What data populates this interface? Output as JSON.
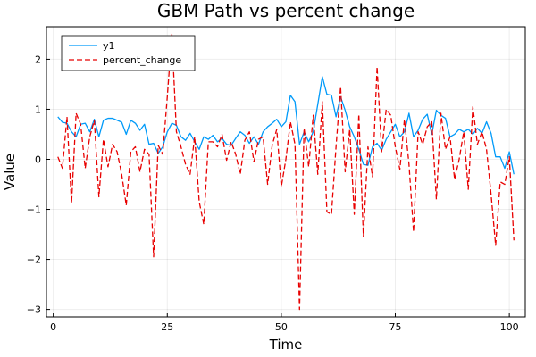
{
  "chart_data": {
    "type": "line",
    "title": "GBM Path vs percent change",
    "xlabel": "Time",
    "ylabel": "Value",
    "xlim": [
      -1.5,
      103.5
    ],
    "ylim": [
      -3.15,
      2.65
    ],
    "x_ticks": [
      0,
      25,
      50,
      75,
      100
    ],
    "y_ticks": [
      -3,
      -2,
      -1,
      0,
      1,
      2
    ],
    "grid": true,
    "legend_position": "top-left",
    "series": [
      {
        "name": "y1",
        "color": "#009AF9",
        "style": "solid",
        "x": [
          1,
          2,
          3,
          4,
          5,
          6,
          7,
          8,
          9,
          10,
          11,
          12,
          13,
          14,
          15,
          16,
          17,
          18,
          19,
          20,
          21,
          22,
          23,
          24,
          25,
          26,
          27,
          28,
          29,
          30,
          31,
          32,
          33,
          34,
          35,
          36,
          37,
          38,
          39,
          40,
          41,
          42,
          43,
          44,
          45,
          46,
          47,
          48,
          49,
          50,
          51,
          52,
          53,
          54,
          55,
          56,
          57,
          58,
          59,
          60,
          61,
          62,
          63,
          64,
          65,
          66,
          67,
          68,
          69,
          70,
          71,
          72,
          73,
          74,
          75,
          76,
          77,
          78,
          79,
          80,
          81,
          82,
          83,
          84,
          85,
          86,
          87,
          88,
          89,
          90,
          91,
          92,
          93,
          94,
          95,
          96,
          97,
          98,
          99,
          100,
          101
        ],
        "values": [
          0.85,
          0.74,
          0.72,
          0.55,
          0.45,
          0.7,
          0.72,
          0.55,
          0.8,
          0.45,
          0.78,
          0.82,
          0.82,
          0.78,
          0.74,
          0.5,
          0.78,
          0.72,
          0.58,
          0.7,
          0.3,
          0.32,
          0.12,
          0.25,
          0.55,
          0.72,
          0.68,
          0.45,
          0.38,
          0.52,
          0.35,
          0.2,
          0.45,
          0.4,
          0.48,
          0.35,
          0.42,
          0.3,
          0.28,
          0.42,
          0.55,
          0.48,
          0.32,
          0.45,
          0.3,
          0.55,
          0.65,
          0.72,
          0.8,
          0.65,
          0.75,
          1.28,
          1.15,
          0.3,
          0.55,
          0.35,
          0.55,
          1.1,
          1.65,
          1.3,
          1.28,
          0.85,
          1.25,
          0.98,
          0.65,
          0.45,
          0.2,
          -0.1,
          -0.12,
          0.25,
          0.32,
          0.18,
          0.4,
          0.55,
          0.7,
          0.45,
          0.55,
          0.92,
          0.45,
          0.58,
          0.8,
          0.9,
          0.5,
          0.98,
          0.88,
          0.82,
          0.45,
          0.5,
          0.6,
          0.55,
          0.6,
          0.5,
          0.62,
          0.52,
          0.75,
          0.52,
          0.05,
          0.05,
          -0.18,
          0.15,
          -0.3
        ]
      },
      {
        "name": "percent_change",
        "color": "#E80000",
        "style": "dashed",
        "x": [
          1,
          2,
          3,
          4,
          5,
          6,
          7,
          8,
          9,
          10,
          11,
          12,
          13,
          14,
          15,
          16,
          17,
          18,
          19,
          20,
          21,
          22,
          23,
          24,
          25,
          26,
          27,
          28,
          29,
          30,
          31,
          32,
          33,
          34,
          35,
          36,
          37,
          38,
          39,
          40,
          41,
          42,
          43,
          44,
          45,
          46,
          47,
          48,
          49,
          50,
          51,
          52,
          53,
          54,
          55,
          56,
          57,
          58,
          59,
          60,
          61,
          62,
          63,
          64,
          65,
          66,
          67,
          68,
          69,
          70,
          71,
          72,
          73,
          74,
          75,
          76,
          77,
          78,
          79,
          80,
          81,
          82,
          83,
          84,
          85,
          86,
          87,
          88,
          89,
          90,
          91,
          92,
          93,
          94,
          95,
          96,
          97,
          98,
          99,
          100,
          101
        ],
        "values": [
          0.05,
          -0.18,
          0.85,
          -0.88,
          0.92,
          0.7,
          -0.18,
          0.45,
          0.78,
          -0.75,
          0.4,
          -0.15,
          0.3,
          0.15,
          -0.3,
          -0.92,
          0.15,
          0.25,
          -0.25,
          0.2,
          0.1,
          -1.95,
          0.28,
          0.1,
          1.25,
          2.5,
          0.55,
          0.25,
          -0.1,
          -0.3,
          0.45,
          -0.85,
          -1.3,
          0.35,
          0.35,
          0.25,
          0.5,
          -0.02,
          0.35,
          0.1,
          -0.3,
          0.38,
          0.55,
          -0.05,
          0.4,
          0.45,
          -0.5,
          0.28,
          0.6,
          -0.55,
          0.0,
          0.75,
          0.3,
          -3.0,
          0.62,
          -0.15,
          0.88,
          -0.3,
          1.15,
          -1.05,
          -1.1,
          0.25,
          1.45,
          -0.25,
          0.6,
          -1.1,
          0.9,
          -1.55,
          0.25,
          -0.35,
          1.85,
          0.15,
          1.0,
          0.88,
          0.25,
          -0.2,
          0.8,
          -0.1,
          -1.45,
          0.55,
          0.3,
          0.65,
          0.75,
          -0.8,
          0.92,
          0.2,
          0.45,
          -0.4,
          0.0,
          0.55,
          -0.6,
          1.05,
          0.3,
          0.55,
          0.2,
          -0.7,
          -1.72,
          -0.45,
          -0.5,
          0.05,
          -1.62
        ]
      }
    ]
  }
}
